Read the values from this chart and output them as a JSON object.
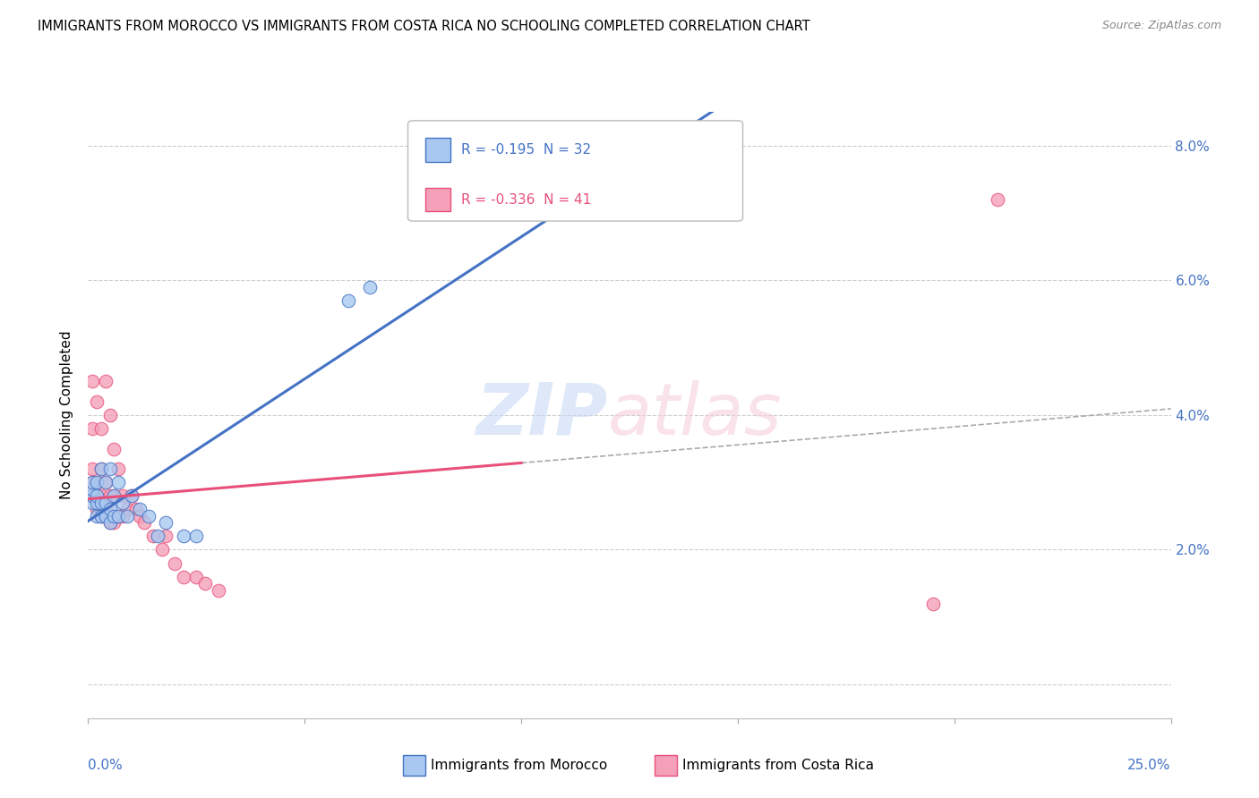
{
  "title": "IMMIGRANTS FROM MOROCCO VS IMMIGRANTS FROM COSTA RICA NO SCHOOLING COMPLETED CORRELATION CHART",
  "source": "Source: ZipAtlas.com",
  "ylabel": "No Schooling Completed",
  "legend1_label": "R = -0.195  N = 32",
  "legend2_label": "R = -0.336  N = 41",
  "legend_bottom_label1": "Immigrants from Morocco",
  "legend_bottom_label2": "Immigrants from Costa Rica",
  "color_morocco": "#a8c8f0",
  "color_costarica": "#f4a0b8",
  "line_morocco": "#4472c4",
  "line_costarica": "#e8507a",
  "background_color": "#ffffff",
  "xlim": [
    0.0,
    0.25
  ],
  "ylim": [
    -0.005,
    0.085
  ],
  "yticks": [
    0.0,
    0.02,
    0.04,
    0.06,
    0.08
  ],
  "ytick_labels": [
    "",
    "2.0%",
    "4.0%",
    "6.0%",
    "8.0%"
  ],
  "morocco_x": [
    0.001,
    0.001,
    0.001,
    0.001,
    0.002,
    0.002,
    0.002,
    0.002,
    0.003,
    0.003,
    0.003,
    0.004,
    0.004,
    0.004,
    0.005,
    0.005,
    0.005,
    0.006,
    0.006,
    0.007,
    0.007,
    0.008,
    0.009,
    0.01,
    0.012,
    0.014,
    0.016,
    0.018,
    0.022,
    0.025,
    0.06,
    0.065
  ],
  "morocco_y": [
    0.027,
    0.028,
    0.029,
    0.03,
    0.025,
    0.027,
    0.028,
    0.03,
    0.025,
    0.027,
    0.032,
    0.025,
    0.027,
    0.03,
    0.024,
    0.026,
    0.032,
    0.025,
    0.028,
    0.025,
    0.03,
    0.027,
    0.025,
    0.028,
    0.026,
    0.025,
    0.022,
    0.024,
    0.022,
    0.022,
    0.057,
    0.059
  ],
  "costarica_x": [
    0.001,
    0.001,
    0.001,
    0.001,
    0.001,
    0.002,
    0.002,
    0.002,
    0.002,
    0.003,
    0.003,
    0.003,
    0.003,
    0.004,
    0.004,
    0.004,
    0.005,
    0.005,
    0.005,
    0.006,
    0.006,
    0.006,
    0.007,
    0.007,
    0.008,
    0.008,
    0.009,
    0.01,
    0.011,
    0.012,
    0.013,
    0.015,
    0.017,
    0.018,
    0.02,
    0.022,
    0.025,
    0.027,
    0.03,
    0.195,
    0.21
  ],
  "costarica_y": [
    0.028,
    0.03,
    0.032,
    0.038,
    0.045,
    0.026,
    0.028,
    0.03,
    0.042,
    0.025,
    0.028,
    0.032,
    0.038,
    0.026,
    0.03,
    0.045,
    0.024,
    0.028,
    0.04,
    0.024,
    0.028,
    0.035,
    0.025,
    0.032,
    0.025,
    0.028,
    0.026,
    0.028,
    0.026,
    0.025,
    0.024,
    0.022,
    0.02,
    0.022,
    0.018,
    0.016,
    0.016,
    0.015,
    0.014,
    0.012,
    0.072
  ]
}
